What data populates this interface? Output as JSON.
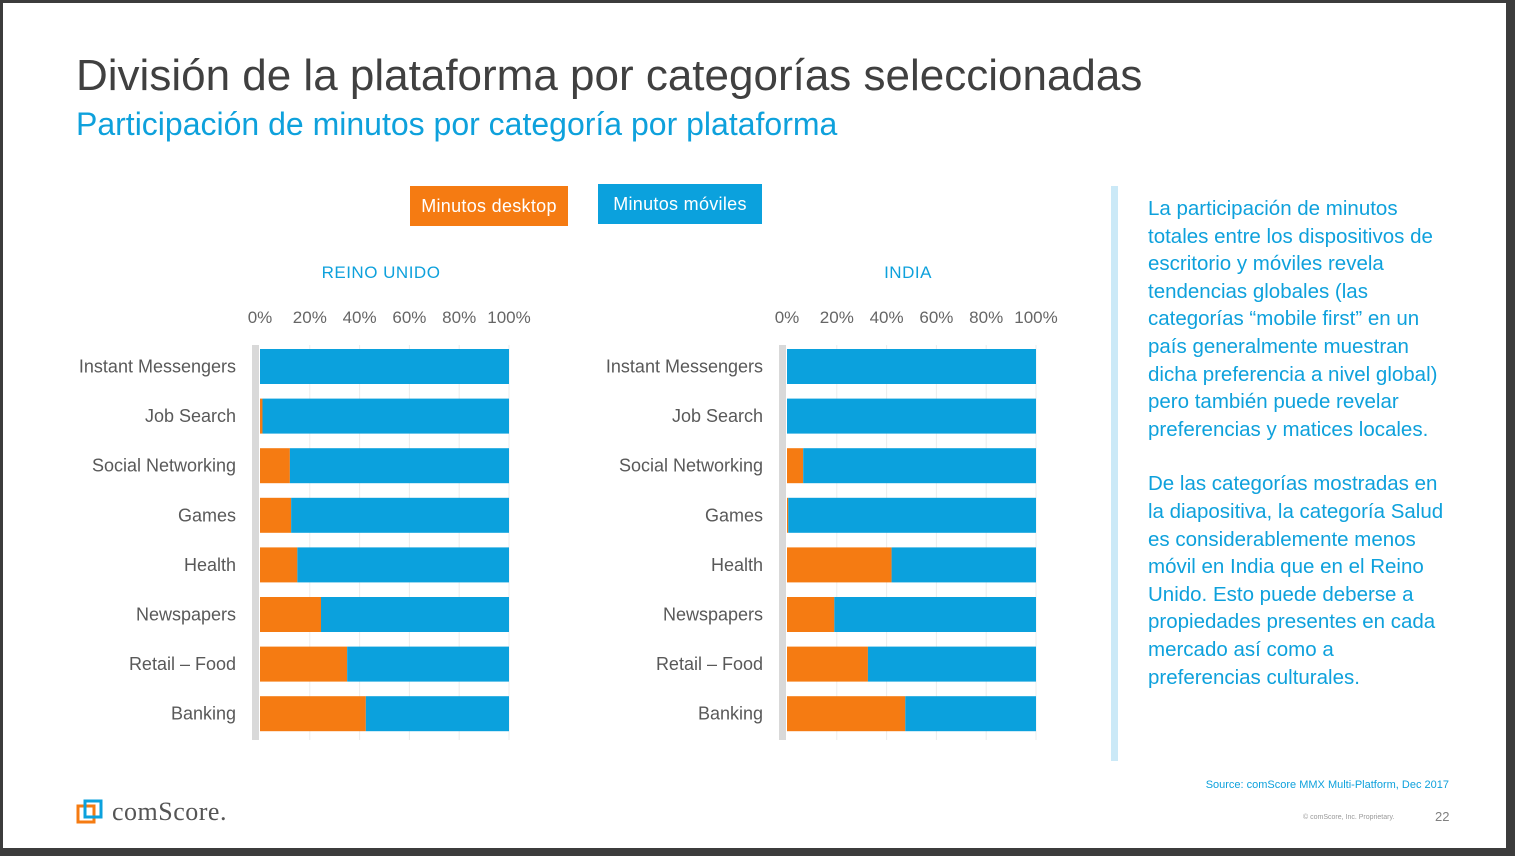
{
  "slide": {
    "title": "División de la plataforma por categorías seleccionadas",
    "subtitle": "Participación de minutos por categoría por plataforma"
  },
  "legend": {
    "desktop_label": "Minutos desktop",
    "mobile_label": "Minutos móviles"
  },
  "colors": {
    "desktop": "#f57b12",
    "mobile": "#0ba1dd",
    "title": "#404040",
    "accent": "#0ea1dc"
  },
  "chart_data": [
    {
      "type": "bar",
      "orientation": "horizontal",
      "stacked": true,
      "title": "REINO UNIDO",
      "categories": [
        "Instant Messengers",
        "Job Search",
        "Social Networking",
        "Games",
        "Health",
        "Newspapers",
        "Retail – Food",
        "Banking"
      ],
      "series": [
        {
          "name": "Minutos desktop",
          "values": [
            0,
            1,
            12,
            12.5,
            15,
            24.5,
            35,
            42.5
          ]
        },
        {
          "name": "Minutos móviles",
          "values": [
            100,
            99,
            88,
            87.5,
            85,
            75.5,
            65,
            57.5
          ]
        }
      ],
      "xticks": [
        "0%",
        "20%",
        "40%",
        "60%",
        "80%",
        "100%"
      ],
      "xlim": [
        0,
        100
      ],
      "axis_position": "top",
      "grid": true
    },
    {
      "type": "bar",
      "orientation": "horizontal",
      "stacked": true,
      "title": "INDIA",
      "categories": [
        "Instant Messengers",
        "Job Search",
        "Social Networking",
        "Games",
        "Health",
        "Newspapers",
        "Retail – Food",
        "Banking"
      ],
      "series": [
        {
          "name": "Minutos desktop",
          "values": [
            0,
            0,
            6.5,
            0.5,
            42,
            19,
            32.5,
            47.5
          ]
        },
        {
          "name": "Minutos móviles",
          "values": [
            100,
            100,
            93.5,
            99.5,
            58,
            81,
            67.5,
            52.5
          ]
        }
      ],
      "xticks": [
        "0%",
        "20%",
        "40%",
        "60%",
        "80%",
        "100%"
      ],
      "xlim": [
        0,
        100
      ],
      "axis_position": "top",
      "grid": true
    }
  ],
  "side_panel": {
    "paragraph1": "La participación de minutos totales entre los dispositivos de escritorio y móviles revela tendencias globales (las categorías “mobile first” en un país generalmente muestran dicha preferencia a nivel global) pero también puede revelar preferencias y matices locales.",
    "paragraph2": "De las categorías mostradas en la diapositiva, la categoría Salud es considerablemente menos móvil en India que en el Reino Unido. Esto puede deberse a propiedades presentes en cada mercado así como a preferencias culturales."
  },
  "footer": {
    "source": "Source: comScore MMX Multi-Platform, Dec 2017",
    "copyright": "© comScore, Inc. Proprietary.",
    "page_number": "22",
    "logo_text": "comScore."
  }
}
